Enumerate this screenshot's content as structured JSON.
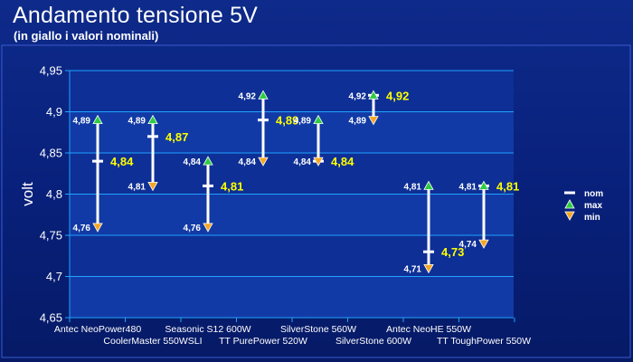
{
  "title": "Andamento tensione 5V",
  "subtitle": "(in giallo i valori nominali)",
  "chart_data": {
    "type": "range",
    "title": "Andamento tensione 5V",
    "subtitle": "(in giallo i valori nominali)",
    "xlabel": "",
    "ylabel": "volt",
    "ylim": [
      4.65,
      4.95
    ],
    "yticks": [
      "4,65",
      "4,7",
      "4,75",
      "4,8",
      "4,85",
      "4,9",
      "4,95"
    ],
    "grid": true,
    "legend_position": "right",
    "legend": [
      "nom",
      "max",
      "min"
    ],
    "colors": {
      "max": "#2ecc40",
      "min": "#f5a623",
      "nom": "#ffffff",
      "nom_label": "#ffff00"
    },
    "categories": [
      "Antec NeoPower480",
      "CoolerMaster 550WSLI",
      "Seasonic S12 600W",
      "TT PurePower 520W",
      "SilverStone 560W",
      "SilverStone 600W",
      "Antec NeoHE 550W",
      "TT ToughPower 550W"
    ],
    "series": [
      {
        "name": "max",
        "values": [
          4.89,
          4.89,
          4.84,
          4.92,
          4.89,
          4.92,
          4.81,
          4.81
        ],
        "labels": [
          "4,89",
          "4,89",
          "4,84",
          "4,92",
          "4,89",
          "4,92",
          "4,81",
          "4,81"
        ]
      },
      {
        "name": "min",
        "values": [
          4.76,
          4.81,
          4.76,
          4.84,
          4.84,
          4.89,
          4.71,
          4.74
        ],
        "labels": [
          "4,76",
          "4,81",
          "4,76",
          "4,84",
          "4,84",
          "4,89",
          "4,71",
          "4,74"
        ]
      },
      {
        "name": "nom",
        "values": [
          4.84,
          4.87,
          4.81,
          4.89,
          4.84,
          4.92,
          4.73,
          4.81
        ],
        "labels": [
          "4,84",
          "4,87",
          "4,81",
          "4,89",
          "4,84",
          "4,92",
          "4,73",
          "4,81"
        ]
      }
    ]
  }
}
